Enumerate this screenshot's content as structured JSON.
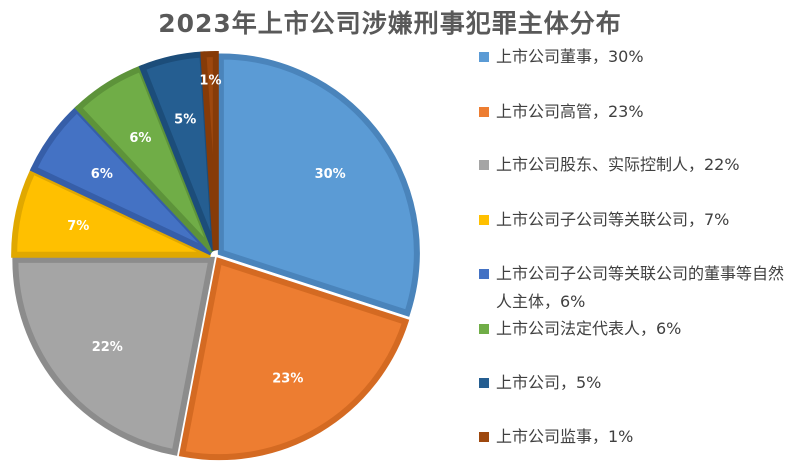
{
  "chart_data": {
    "type": "pie",
    "title": "2023年上市公司涉嫌刑事犯罪主体分布",
    "slices": [
      {
        "label": "上市公司董事",
        "value": 30,
        "data_label": "30%",
        "legend": "上市公司董事，30%",
        "color": "#5b9bd5",
        "edge": "#4a84bb"
      },
      {
        "label": "上市公司高管",
        "value": 23,
        "data_label": "23%",
        "legend": "上市公司高管，23%",
        "color": "#ed7d31",
        "edge": "#d46a22"
      },
      {
        "label": "上市公司股东、实际控制人",
        "value": 22,
        "data_label": "22%",
        "legend": "上市公司股东、实际控制人，22%",
        "color": "#a5a5a5",
        "edge": "#8c8c8c"
      },
      {
        "label": "上市公司子公司等关联公司",
        "value": 7,
        "data_label": "7%",
        "legend": "上市公司子公司等关联公司，7%",
        "color": "#ffc000",
        "edge": "#e0a800"
      },
      {
        "label": "上市公司子公司等关联公司的董事等自然人主体",
        "value": 6,
        "data_label": "6%",
        "legend": "上市公司子公司等关联公司的董事等自然人主体，6%",
        "color": "#4472c4",
        "edge": "#365ea8"
      },
      {
        "label": "上市公司法定代表人",
        "value": 6,
        "data_label": "6%",
        "legend": "上市公司法定代表人，6%",
        "color": "#70ad47",
        "edge": "#5d933a"
      },
      {
        "label": "上市公司",
        "value": 5,
        "data_label": "5%",
        "legend": "上市公司，5%",
        "color": "#255e91",
        "edge": "#1c4d7a"
      },
      {
        "label": "上市公司监事",
        "value": 1,
        "data_label": "1%",
        "legend": "上市公司监事，1%",
        "color": "#9e480e",
        "edge": "#863b08"
      }
    ],
    "legend_position": "right",
    "data_label_color": "#ffffff"
  }
}
